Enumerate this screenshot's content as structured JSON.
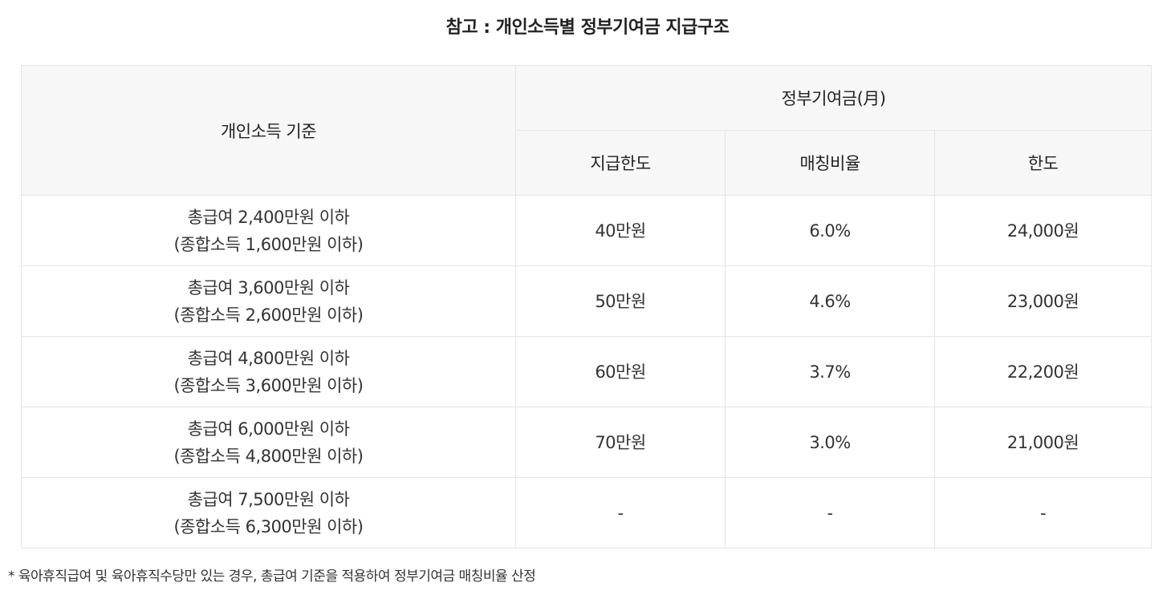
{
  "title": "참고 : 개인소득별 정부기여금 지급구조",
  "table": {
    "header": {
      "income_basis": "개인소득 기준",
      "contribution_group": "정부기여금(月)",
      "columns": [
        "지급한도",
        "매칭비율",
        "한도"
      ]
    },
    "rows": [
      {
        "income_line1": "총급여 2,400만원 이하",
        "income_line2": "(종합소득 1,600만원 이하)",
        "limit": "40만원",
        "ratio": "6.0%",
        "max": "24,000원"
      },
      {
        "income_line1": "총급여 3,600만원 이하",
        "income_line2": "(종합소득 2,600만원 이하)",
        "limit": "50만원",
        "ratio": "4.6%",
        "max": "23,000원"
      },
      {
        "income_line1": "총급여 4,800만원 이하",
        "income_line2": "(종합소득 3,600만원 이하)",
        "limit": "60만원",
        "ratio": "3.7%",
        "max": "22,200원"
      },
      {
        "income_line1": "총급여 6,000만원 이하",
        "income_line2": "(종합소득 4,800만원 이하)",
        "limit": "70만원",
        "ratio": "3.0%",
        "max": "21,000원"
      },
      {
        "income_line1": "총급여 7,500만원 이하",
        "income_line2": "(종합소득 6,300만원 이하)",
        "limit": "-",
        "ratio": "-",
        "max": "-"
      }
    ]
  },
  "footnote": "* 육아휴직급여 및 육아휴직수당만 있는 경우, 총급여 기준을 적용하여 정부기여금 매칭비율 산정"
}
